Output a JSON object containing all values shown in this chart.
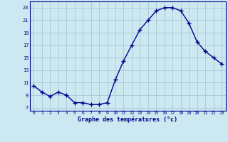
{
  "hours": [
    0,
    1,
    2,
    3,
    4,
    5,
    6,
    7,
    8,
    9,
    10,
    11,
    12,
    13,
    14,
    15,
    16,
    17,
    18,
    19,
    20,
    21,
    22,
    23
  ],
  "temps": [
    10.5,
    9.5,
    8.8,
    9.5,
    9.0,
    7.8,
    7.8,
    7.5,
    7.5,
    7.8,
    11.5,
    14.5,
    17.0,
    19.5,
    21.0,
    22.5,
    23.0,
    23.0,
    22.5,
    20.5,
    17.5,
    16.0,
    15.0,
    14.0
  ],
  "bg_color": "#cce8f0",
  "line_color": "#00008b",
  "marker_color": "#00008b",
  "grid_color": "#a8c8d8",
  "ylabel_ticks": [
    7,
    9,
    11,
    13,
    15,
    17,
    19,
    21,
    23
  ],
  "xlabel": "Graphe des températures (°c)",
  "ylim": [
    6.5,
    24.0
  ],
  "xlim": [
    -0.5,
    23.5
  ]
}
